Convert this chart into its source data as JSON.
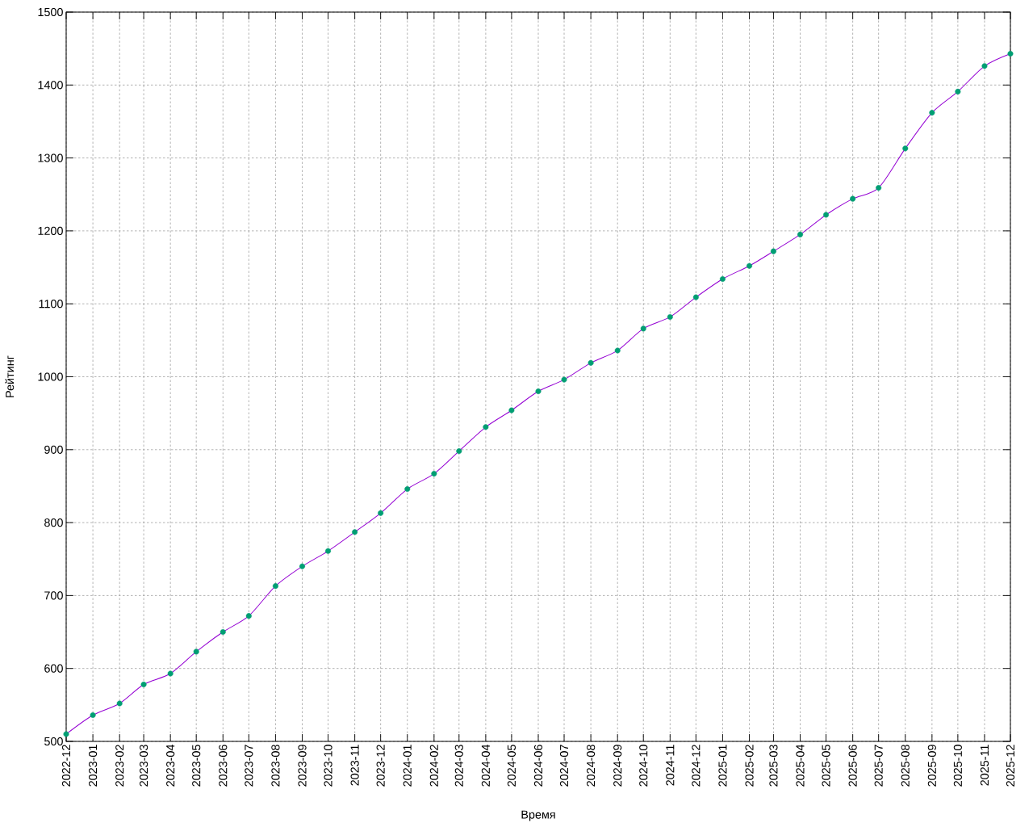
{
  "chart_data": {
    "type": "line",
    "xlabel": "Время",
    "ylabel": "Рейтинг",
    "x": [
      "2022-12",
      "2023-01",
      "2023-02",
      "2023-03",
      "2023-04",
      "2023-05",
      "2023-06",
      "2023-07",
      "2023-08",
      "2023-09",
      "2023-10",
      "2023-11",
      "2023-12",
      "2024-01",
      "2024-02",
      "2024-03",
      "2024-04",
      "2024-05",
      "2024-06",
      "2024-07",
      "2024-08",
      "2024-09",
      "2024-10",
      "2024-11",
      "2024-12",
      "2025-01",
      "2025-02",
      "2025-03",
      "2025-04",
      "2025-05",
      "2025-06",
      "2025-07",
      "2025-08",
      "2025-09",
      "2025-10",
      "2025-11",
      "2025-12"
    ],
    "series": [
      {
        "color": "#9400d3",
        "marker": "none",
        "values": [
          510,
          536,
          552,
          578,
          593,
          623,
          650,
          672,
          713,
          740,
          761,
          787,
          813,
          846,
          867,
          898,
          931,
          954,
          980,
          996,
          1019,
          1036,
          1066,
          1082,
          1109,
          1134,
          1152,
          1172,
          1195,
          1222,
          1244,
          1259,
          1313,
          1362,
          1391,
          1426,
          1443
        ]
      },
      {
        "type": "scatter",
        "color": "#009e73",
        "marker": "circle",
        "values": [
          510,
          536,
          552,
          578,
          593,
          623,
          650,
          672,
          713,
          740,
          761,
          787,
          813,
          846,
          867,
          898,
          931,
          954,
          980,
          996,
          1019,
          1036,
          1066,
          1082,
          1109,
          1134,
          1152,
          1172,
          1195,
          1222,
          1244,
          1259,
          1313,
          1362,
          1391,
          1426,
          1443
        ]
      }
    ],
    "xlim": [
      "2022-12",
      "2025-12"
    ],
    "xticks": [
      {
        "value": "2022-12",
        "label": "2022-12"
      },
      {
        "value": "2023-01",
        "label": "2023-01"
      },
      {
        "value": "2023-02",
        "label": "2023-02"
      },
      {
        "value": "2023-03",
        "label": "2023-03"
      },
      {
        "value": "2023-04",
        "label": "2023-04"
      },
      {
        "value": "2023-05",
        "label": "2023-05"
      },
      {
        "value": "2023-06",
        "label": "2023-06"
      },
      {
        "value": "2023-07",
        "label": "2023-07"
      },
      {
        "value": "2023-08",
        "label": "2023-08"
      },
      {
        "value": "2023-09",
        "label": "2023-09"
      },
      {
        "value": "2023-10",
        "label": "2023-10"
      },
      {
        "value": "2023-11",
        "label": "2023-11"
      },
      {
        "value": "2023-12",
        "label": "2023-12"
      },
      {
        "value": "2024-01",
        "label": "2024-01"
      },
      {
        "value": "2024-02",
        "label": "2024-02"
      },
      {
        "value": "2024-03",
        "label": "2024-03"
      },
      {
        "value": "2024-04",
        "label": "2024-04"
      },
      {
        "value": "2024-05",
        "label": "2024-05"
      },
      {
        "value": "2024-06",
        "label": "2024-06"
      },
      {
        "value": "2024-07",
        "label": "2024-07"
      },
      {
        "value": "2024-08",
        "label": "2024-08"
      },
      {
        "value": "2024-09",
        "label": "2024-09"
      },
      {
        "value": "2024-10",
        "label": "2024-10"
      },
      {
        "value": "2024-11",
        "label": "2024-11"
      },
      {
        "value": "2024-12",
        "label": "2024-12"
      },
      {
        "value": "2025-01",
        "label": "2025-01"
      },
      {
        "value": "2025-02",
        "label": "2025-02"
      },
      {
        "value": "2025-03",
        "label": "2025-03"
      },
      {
        "value": "2025-04",
        "label": "2025-04"
      },
      {
        "value": "2025-05",
        "label": "2025-05"
      },
      {
        "value": "2025-06",
        "label": "2025-06"
      },
      {
        "value": "2025-07",
        "label": "2025-07"
      },
      {
        "value": "2025-08",
        "label": "2025-08"
      },
      {
        "value": "2025-09",
        "label": "2025-09"
      },
      {
        "value": "2025-10",
        "label": "2025-10"
      },
      {
        "value": "2025-11",
        "label": "2025-11"
      },
      {
        "value": "2025-12",
        "label": "2025-12"
      }
    ],
    "ylim": [
      500,
      1500
    ],
    "yticks": [
      500,
      600,
      700,
      800,
      900,
      1000,
      1100,
      1200,
      1300,
      1400,
      1500
    ],
    "grid": true
  }
}
